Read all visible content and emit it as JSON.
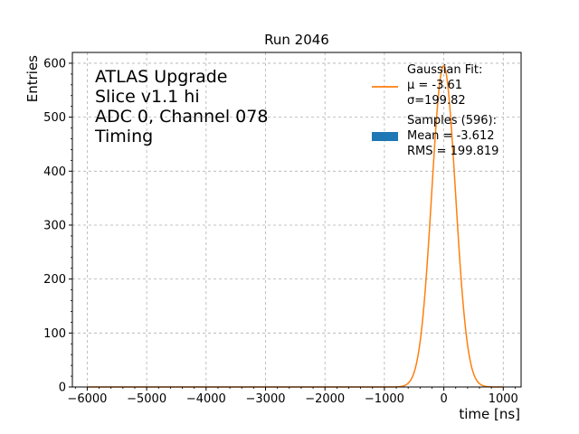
{
  "chart_data": {
    "type": "line",
    "title": "Run 2046",
    "xlabel": "time [ns]",
    "ylabel": "Entries",
    "xlim": [
      -6250,
      1300
    ],
    "ylim": [
      0,
      620
    ],
    "x_ticks": [
      -6000,
      -5000,
      -4000,
      -3000,
      -2000,
      -1000,
      0,
      1000
    ],
    "x_tick_labels": [
      "−6000",
      "−5000",
      "−4000",
      "−3000",
      "−2000",
      "−1000",
      "0",
      "1000"
    ],
    "y_ticks": [
      0,
      100,
      200,
      300,
      400,
      500,
      600
    ],
    "y_tick_labels": [
      "0",
      "100",
      "200",
      "300",
      "400",
      "500",
      "600"
    ],
    "grid": true,
    "legend_placement": "top-right",
    "annotation_lines": [
      "ATLAS Upgrade",
      "Slice v1.1 hi",
      "ADC 0, Channel 078",
      "Timing"
    ],
    "series": [
      {
        "name": "Gaussian Fit:\n μ = -3.61\n σ=199.82",
        "kind": "line",
        "color": "#ff7f0e",
        "mu": -3.61,
        "sigma": 199.82,
        "amplitude": 595
      },
      {
        "name": "Samples (596):\n Mean = -3.612\n RMS = 199.819",
        "kind": "histogram",
        "color": "#1f77b4",
        "count": 596,
        "mean": -3.612,
        "rms": 199.819
      }
    ]
  }
}
